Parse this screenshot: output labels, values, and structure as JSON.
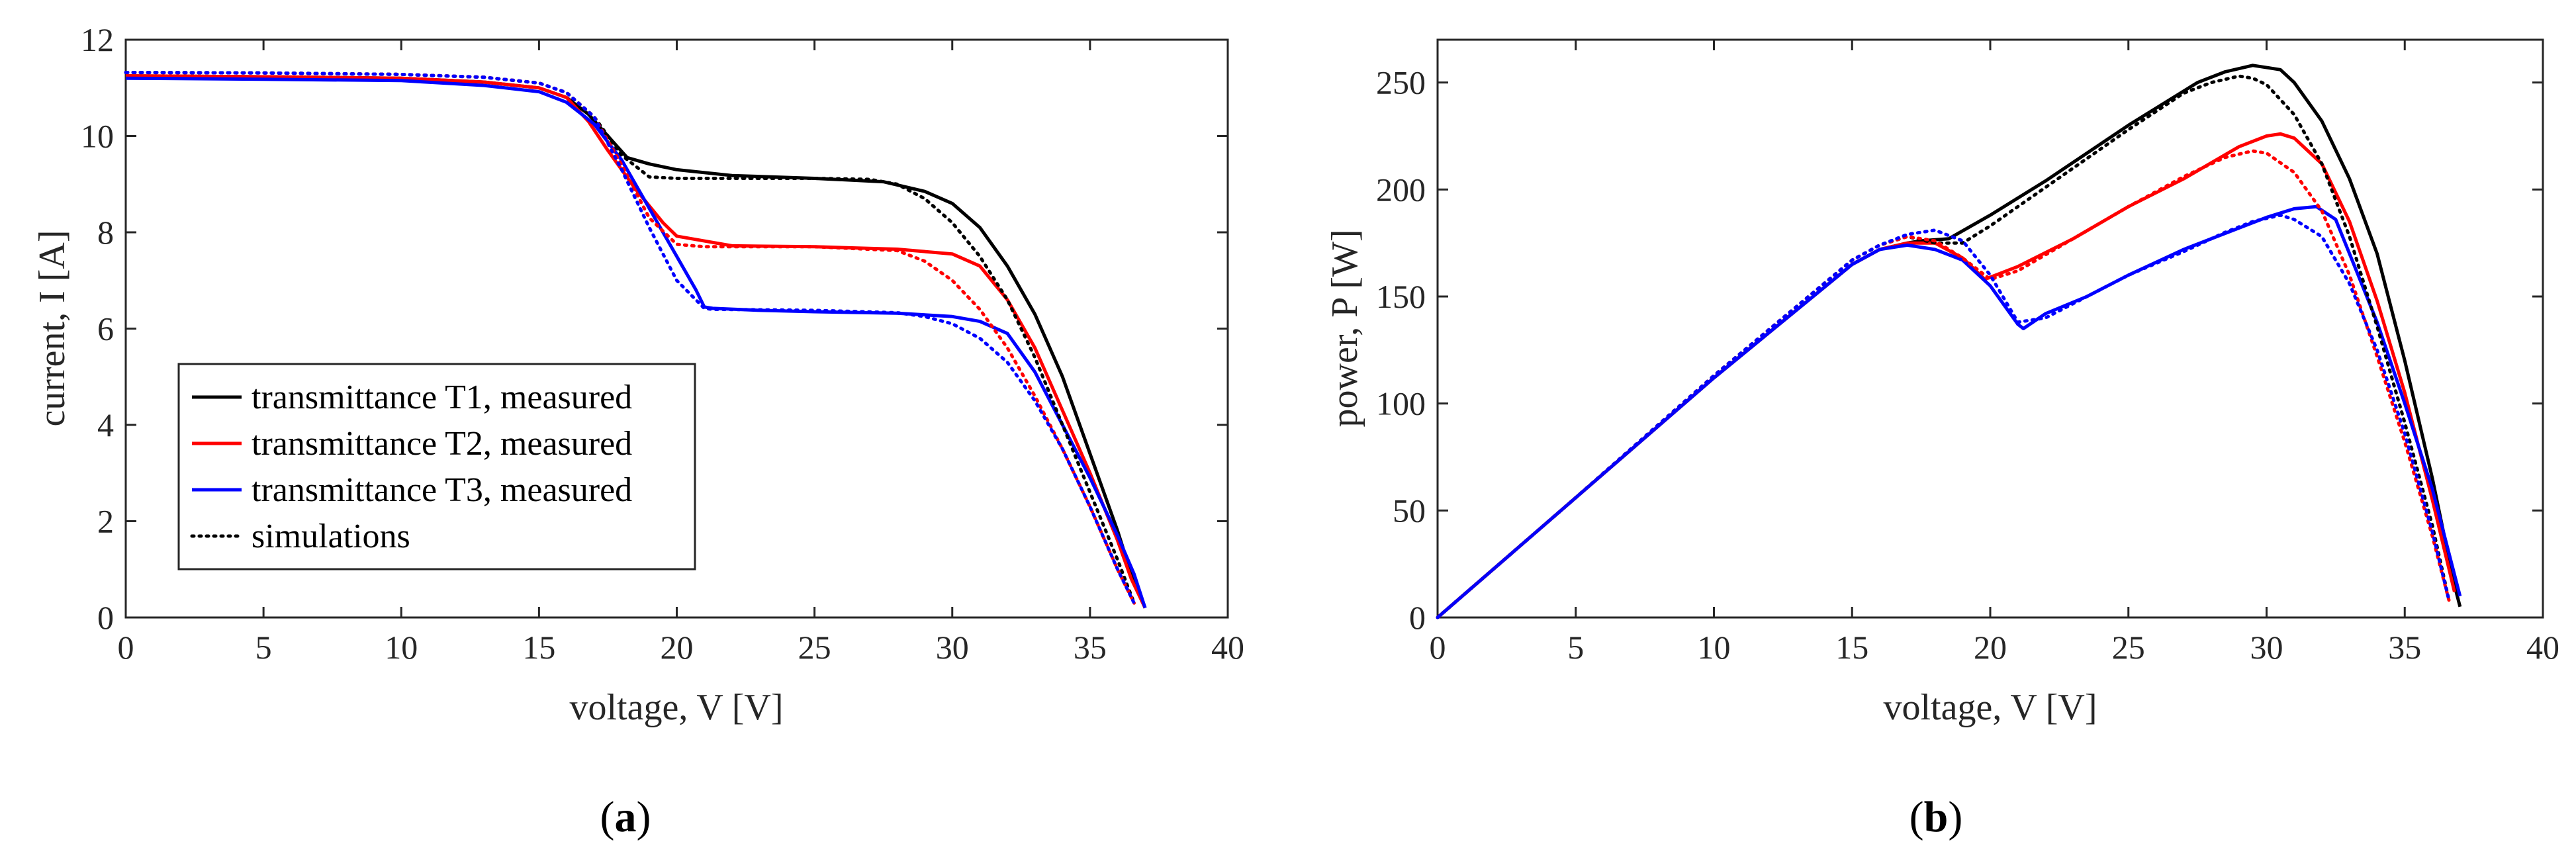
{
  "chart_data": [
    {
      "type": "line",
      "caption": "(a)",
      "caption_letter": "a",
      "xlabel": "voltage, V [V]",
      "ylabel": "current, I [A]",
      "xlim": [
        0,
        40
      ],
      "ylim": [
        0,
        12
      ],
      "xticks": [
        "0",
        "5",
        "10",
        "15",
        "20",
        "25",
        "30",
        "35",
        "40"
      ],
      "yticks": [
        "0",
        "2",
        "4",
        "6",
        "8",
        "10",
        "12"
      ],
      "legend_position": "bottom-left",
      "series": [
        {
          "name": "transmittance T1, measured",
          "color": "#000000",
          "style": "solid",
          "x": [
            0,
            5,
            10,
            13,
            15,
            16,
            16.8,
            17.5,
            18.2,
            19,
            20,
            22,
            25,
            27.5,
            29,
            30,
            31,
            32,
            33,
            34,
            35,
            36,
            36.5,
            37
          ],
          "y": [
            11.25,
            11.23,
            11.2,
            11.12,
            11.0,
            10.8,
            10.45,
            10.0,
            9.55,
            9.42,
            9.3,
            9.18,
            9.12,
            9.05,
            8.85,
            8.6,
            8.1,
            7.3,
            6.3,
            5.0,
            3.4,
            1.8,
            0.9,
            0.2
          ]
        },
        {
          "name": "transmittance T2, measured",
          "color": "#ff0000",
          "style": "solid",
          "x": [
            0,
            5,
            10,
            13,
            15,
            16,
            16.8,
            17.5,
            18.5,
            19.5,
            20,
            21,
            22,
            25,
            28,
            30,
            31,
            32,
            33,
            34,
            35,
            36,
            36.5,
            37
          ],
          "y": [
            11.25,
            11.23,
            11.2,
            11.12,
            11.0,
            10.8,
            10.3,
            9.7,
            8.9,
            8.2,
            7.92,
            7.82,
            7.72,
            7.7,
            7.65,
            7.55,
            7.3,
            6.6,
            5.6,
            4.3,
            3.0,
            1.6,
            0.8,
            0.2
          ]
        },
        {
          "name": "transmittance T3, measured",
          "color": "#0000ff",
          "style": "solid",
          "x": [
            0,
            5,
            10,
            13,
            15,
            16,
            17,
            18,
            19,
            20,
            20.7,
            21,
            21.3,
            23,
            25,
            28,
            30,
            31,
            32,
            33,
            34,
            35,
            36,
            36.6,
            37
          ],
          "y": [
            11.2,
            11.18,
            11.15,
            11.05,
            10.92,
            10.7,
            10.25,
            9.5,
            8.5,
            7.5,
            6.8,
            6.45,
            6.42,
            6.38,
            6.35,
            6.32,
            6.25,
            6.15,
            5.9,
            5.1,
            4.0,
            2.9,
            1.7,
            0.9,
            0.2
          ]
        },
        {
          "name": "simulations",
          "color": "#000000",
          "style": "dotted",
          "x": [
            0,
            5,
            10,
            13,
            15,
            16,
            17,
            18,
            19,
            20,
            22,
            25,
            27,
            28,
            29,
            30,
            31,
            32,
            33,
            34,
            35,
            36,
            36.6
          ],
          "y": [
            11.32,
            11.31,
            11.28,
            11.22,
            11.1,
            10.9,
            10.4,
            9.6,
            9.15,
            9.12,
            9.12,
            9.12,
            9.1,
            9.0,
            8.7,
            8.2,
            7.5,
            6.6,
            5.4,
            4.0,
            2.6,
            1.2,
            0.3
          ]
        },
        {
          "name": "",
          "color": "#ff0000",
          "style": "dotted",
          "x": [
            0,
            5,
            10,
            13,
            15,
            16,
            17,
            18,
            19,
            20,
            21,
            25,
            28,
            29,
            30,
            31,
            32,
            33,
            34,
            35,
            36,
            36.6
          ],
          "y": [
            11.32,
            11.31,
            11.28,
            11.22,
            11.1,
            10.9,
            10.4,
            9.4,
            8.3,
            7.75,
            7.7,
            7.7,
            7.62,
            7.4,
            7.0,
            6.4,
            5.6,
            4.6,
            3.5,
            2.3,
            1.0,
            0.3
          ]
        },
        {
          "name": "",
          "color": "#0000ff",
          "style": "dotted",
          "x": [
            0,
            5,
            10,
            13,
            15,
            16,
            17,
            18,
            19,
            20,
            21,
            21.3,
            25,
            28,
            29,
            30,
            31,
            32,
            33,
            34,
            35,
            36,
            36.6
          ],
          "y": [
            11.32,
            11.31,
            11.28,
            11.22,
            11.1,
            10.9,
            10.4,
            9.3,
            8.1,
            7.0,
            6.42,
            6.4,
            6.38,
            6.33,
            6.25,
            6.1,
            5.8,
            5.3,
            4.5,
            3.5,
            2.3,
            1.0,
            0.3
          ]
        }
      ]
    },
    {
      "type": "line",
      "caption": "(b)",
      "caption_letter": "b",
      "xlabel": "voltage, V [V]",
      "ylabel": "power, P [W]",
      "xlim": [
        0,
        40
      ],
      "ylim": [
        0,
        270
      ],
      "xticks": [
        "0",
        "5",
        "10",
        "15",
        "20",
        "25",
        "30",
        "35",
        "40"
      ],
      "yticks": [
        "0",
        "50",
        "100",
        "150",
        "200",
        "250"
      ],
      "series": [
        {
          "name": "transmittance T1, measured",
          "color": "#000000",
          "style": "solid",
          "x": [
            0,
            5,
            10,
            15,
            16,
            17,
            17.5,
            18.5,
            20,
            22,
            25,
            27.5,
            28.5,
            29.5,
            30.5,
            31,
            32,
            33,
            34,
            35,
            36,
            36.8,
            37
          ],
          "y": [
            0,
            56,
            112,
            165,
            172,
            175,
            176,
            177,
            188,
            204,
            230,
            250,
            255,
            258,
            256,
            250,
            232,
            205,
            170,
            120,
            65,
            15,
            5
          ]
        },
        {
          "name": "transmittance T2, measured",
          "color": "#ff0000",
          "style": "solid",
          "x": [
            0,
            5,
            10,
            15,
            16,
            17,
            18,
            19,
            19.8,
            21,
            23,
            25,
            27,
            29,
            30,
            30.5,
            31,
            32,
            33,
            34,
            35,
            36,
            36.8
          ],
          "y": [
            0,
            56,
            112,
            165,
            172,
            175,
            175,
            168,
            158,
            164,
            177,
            192,
            205,
            220,
            225,
            226,
            224,
            212,
            185,
            148,
            105,
            55,
            12
          ]
        },
        {
          "name": "transmittance T3, measured",
          "color": "#0000ff",
          "style": "solid",
          "x": [
            0,
            5,
            10,
            15,
            16,
            17,
            18,
            19,
            20,
            21,
            21.2,
            22,
            23.5,
            25,
            27,
            29,
            30,
            31,
            31.8,
            32.5,
            33,
            34,
            35,
            36,
            37
          ],
          "y": [
            0,
            56,
            112,
            165,
            172,
            174,
            172,
            167,
            155,
            137,
            135,
            142,
            150,
            160,
            172,
            182,
            187,
            191,
            192,
            186,
            170,
            138,
            100,
            60,
            10
          ]
        },
        {
          "name": "simulations",
          "color": "#000000",
          "style": "dotted",
          "x": [
            0,
            5,
            10,
            15,
            16,
            17,
            18,
            19,
            20,
            22,
            25,
            27,
            28,
            29,
            29.5,
            30,
            31,
            32,
            33,
            34,
            35,
            36,
            36.6
          ],
          "y": [
            0,
            56,
            113,
            167,
            174,
            178,
            175,
            175,
            183,
            201,
            228,
            245,
            250,
            253,
            252,
            249,
            235,
            212,
            178,
            136,
            91,
            43,
            8
          ]
        },
        {
          "name": "",
          "color": "#ff0000",
          "style": "dotted",
          "x": [
            0,
            5,
            10,
            15,
            16,
            17,
            18,
            19,
            20,
            21,
            23,
            25,
            27,
            28.5,
            29.5,
            30,
            31,
            32,
            33,
            34,
            35,
            36,
            36.6
          ],
          "y": [
            0,
            56,
            113,
            167,
            174,
            178,
            176,
            168,
            158,
            162,
            177,
            192,
            206,
            215,
            218,
            217,
            208,
            190,
            160,
            122,
            82,
            38,
            8
          ]
        },
        {
          "name": "",
          "color": "#0000ff",
          "style": "dotted",
          "x": [
            0,
            5,
            10,
            15,
            16,
            17,
            18,
            19,
            20,
            21,
            22,
            25,
            27,
            28.5,
            29.5,
            30.5,
            31,
            32,
            33,
            34,
            35,
            36,
            36.6
          ],
          "y": [
            0,
            56,
            113,
            167,
            174,
            179,
            181,
            176,
            160,
            138,
            140,
            160,
            171,
            180,
            185,
            188,
            186,
            178,
            156,
            125,
            86,
            40,
            8
          ]
        }
      ]
    }
  ]
}
